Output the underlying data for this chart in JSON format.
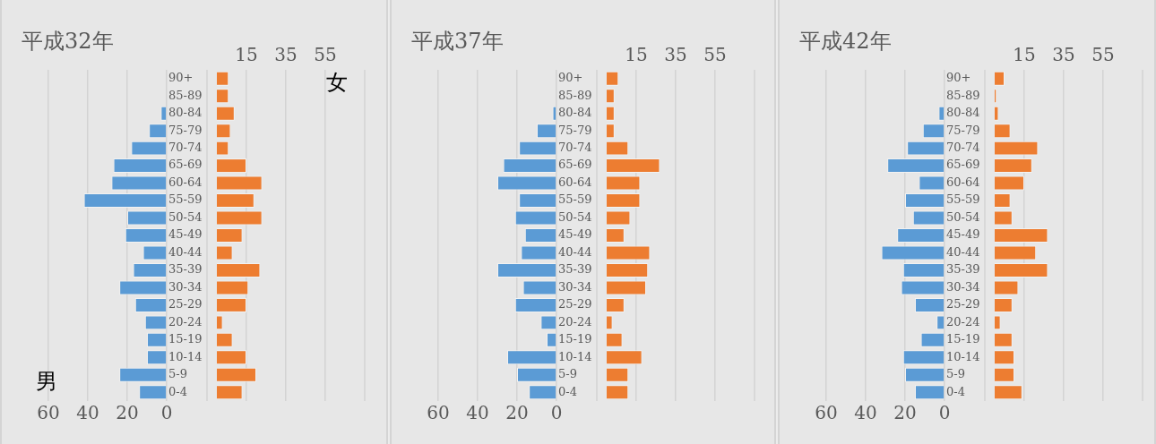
{
  "chart_data": [
    {
      "type": "bar",
      "orientation": "horizontal",
      "title": "平成32年",
      "annotations": [
        "男"
      ],
      "tick_labels": "x",
      "categories": [
        null,
        null,
        null,
        null,
        null,
        null,
        null,
        null,
        null,
        null,
        null,
        null,
        null,
        null,
        null,
        null,
        null,
        null,
        null
      ],
      "series": [
        {
          "color": "#5b9bd5",
          "values": [
            0,
            0,
            3,
            9,
            18,
            27,
            28,
            42,
            20,
            21,
            12,
            17,
            24,
            16,
            11,
            10,
            10,
            24,
            14
          ]
        }
      ],
      "xlim": [
        60,
        0
      ],
      "xticks": [
        60,
        40,
        20,
        0
      ],
      "grid": "x"
    },
    {
      "type": "bar",
      "orientation": "horizontal",
      "annotations": [
        "女"
      ],
      "categories": [
        "90+",
        "85-89",
        "80-84",
        "75-79",
        "70-74",
        "65-69",
        "60-64",
        "55-59",
        "50-54",
        "45-49",
        "40-44",
        "35-39",
        "30-34",
        "25-29",
        "20-24",
        "15-19",
        "10-14",
        "5-9",
        "0-4"
      ],
      "series": [
        {
          "color": "#ed7d31",
          "values": [
            6,
            6,
            9,
            7,
            6,
            15,
            23,
            19,
            23,
            13,
            8,
            22,
            16,
            15,
            3,
            8,
            15,
            20,
            13
          ]
        }
      ],
      "xlim": [
        -5,
        75
      ],
      "xticks": [
        15,
        35,
        55
      ],
      "grid": "x"
    },
    {
      "type": "bar",
      "orientation": "horizontal",
      "title": "平成37年",
      "tick_labels": "x",
      "categories": [
        null,
        null,
        null,
        null,
        null,
        null,
        null,
        null,
        null,
        null,
        null,
        null,
        null,
        null,
        null,
        null,
        null,
        null,
        null
      ],
      "series": [
        {
          "color": "#5b9bd5",
          "values": [
            0,
            0,
            2,
            10,
            19,
            27,
            30,
            19,
            21,
            16,
            18,
            30,
            17,
            21,
            8,
            5,
            25,
            20,
            14
          ]
        }
      ],
      "xlim": [
        60,
        0
      ],
      "xticks": [
        60,
        40,
        20,
        0
      ],
      "grid": "x"
    },
    {
      "type": "bar",
      "orientation": "horizontal",
      "categories": [
        "90+",
        "85-89",
        "80-84",
        "75-79",
        "70-74",
        "65-69",
        "60-64",
        "55-59",
        "50-54",
        "45-49",
        "40-44",
        "35-39",
        "30-34",
        "25-29",
        "20-24",
        "15-19",
        "10-14",
        "5-9",
        "0-4"
      ],
      "series": [
        {
          "color": "#ed7d31",
          "values": [
            6,
            4,
            4,
            4,
            11,
            27,
            17,
            17,
            12,
            9,
            22,
            21,
            20,
            9,
            3,
            8,
            18,
            11,
            11
          ]
        }
      ],
      "xlim": [
        -5,
        75
      ],
      "xticks": [
        15,
        35,
        55
      ],
      "grid": "x"
    },
    {
      "type": "bar",
      "orientation": "horizontal",
      "title": "平成42年",
      "tick_labels": "x",
      "categories": [
        null,
        null,
        null,
        null,
        null,
        null,
        null,
        null,
        null,
        null,
        null,
        null,
        null,
        null,
        null,
        null,
        null,
        null,
        null
      ],
      "series": [
        {
          "color": "#5b9bd5",
          "values": [
            0,
            0,
            3,
            11,
            19,
            29,
            13,
            20,
            16,
            24,
            32,
            21,
            22,
            15,
            4,
            12,
            21,
            20,
            15
          ]
        }
      ],
      "xlim": [
        60,
        0
      ],
      "xticks": [
        60,
        40,
        20,
        0
      ],
      "grid": "x"
    },
    {
      "type": "bar",
      "orientation": "horizontal",
      "categories": [
        "90+",
        "85-89",
        "80-84",
        "75-79",
        "70-74",
        "65-69",
        "60-64",
        "55-59",
        "50-54",
        "45-49",
        "40-44",
        "35-39",
        "30-34",
        "25-29",
        "20-24",
        "15-19",
        "10-14",
        "5-9",
        "0-4"
      ],
      "series": [
        {
          "color": "#ed7d31",
          "values": [
            5,
            1,
            2,
            8,
            22,
            19,
            15,
            8,
            9,
            27,
            21,
            27,
            12,
            9,
            3,
            9,
            10,
            10,
            14
          ]
        }
      ],
      "xlim": [
        -5,
        75
      ],
      "xticks": [
        15,
        35,
        55
      ],
      "grid": "x"
    }
  ]
}
